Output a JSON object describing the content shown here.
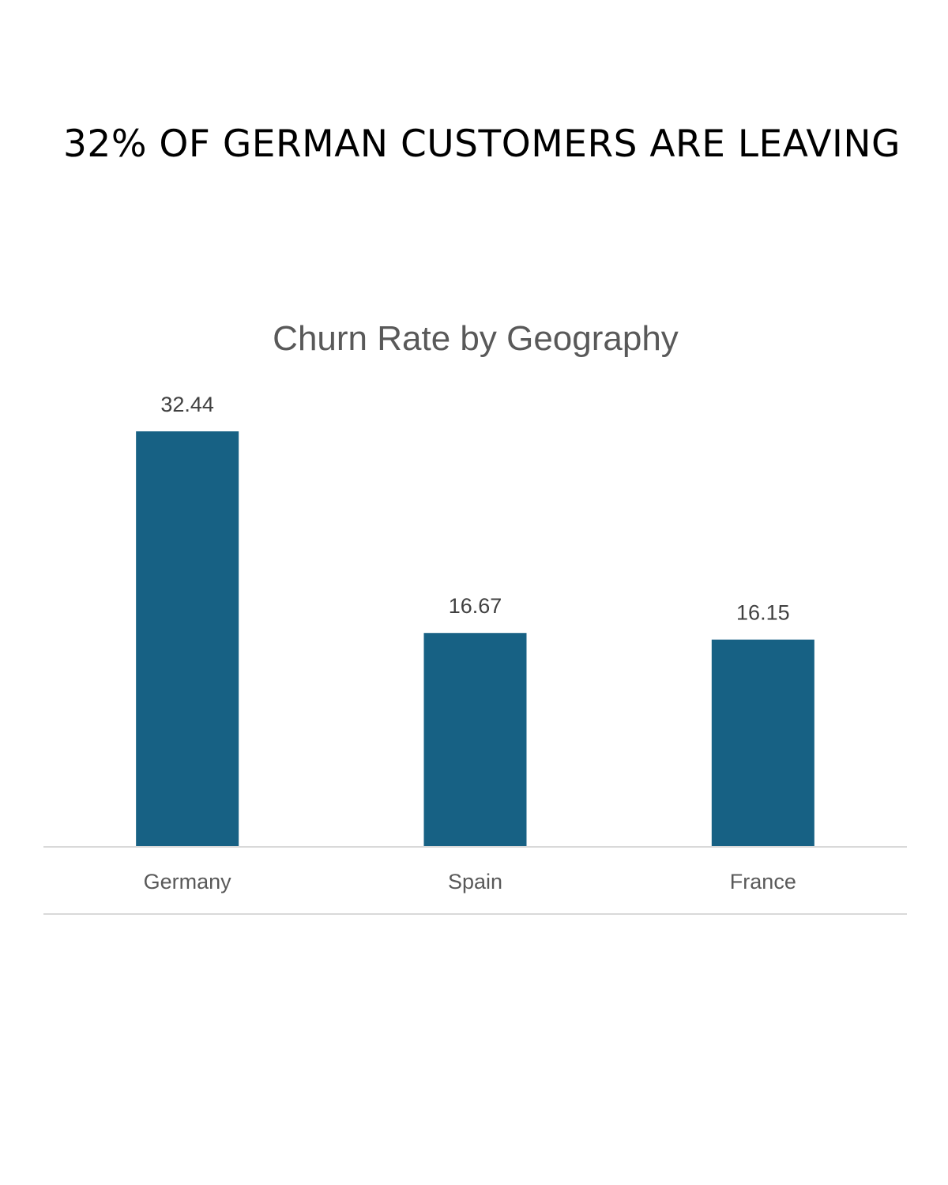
{
  "headline": "32% OF GERMAN CUSTOMERS ARE LEAVING",
  "chart_data": {
    "type": "bar",
    "title": "Churn Rate by Geography",
    "categories": [
      "Germany",
      "Spain",
      "France"
    ],
    "values": [
      32.44,
      16.67,
      16.15
    ],
    "data_labels": [
      "32.44",
      "16.67",
      "16.15"
    ],
    "xlabel": "",
    "ylabel": "",
    "ylim": [
      0,
      32.44
    ],
    "grid": false,
    "legend": "none",
    "bar_color": "#176184",
    "axis_color": "#d9d9d9"
  }
}
